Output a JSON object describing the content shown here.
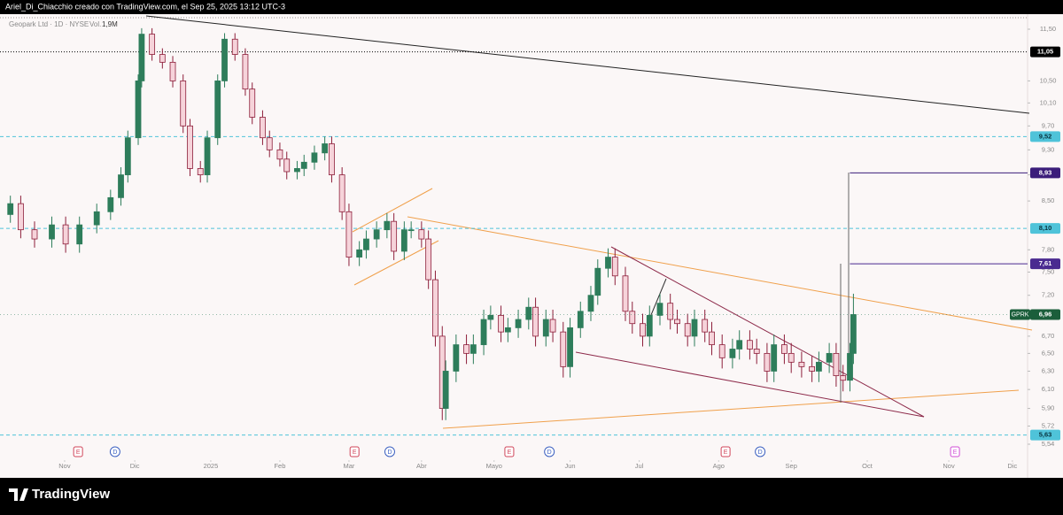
{
  "header": "Ariel_Di_Chiacchio creado con TradingView.com, el Sep 25, 2025 13:12 UTC-3",
  "footer": "TradingView",
  "chart_data": {
    "type": "candlestick",
    "title": "Geopark Ltd · 1D · NYSE",
    "volume_label": "Vol.",
    "volume": "1,9M",
    "symbol": "GPRK",
    "last_label": "6,96",
    "last": 6.96,
    "log": true,
    "grid": false,
    "up_color": "#2e7d5b",
    "down_color": "#8d1e3a",
    "x": [
      3,
      6,
      10,
      15,
      19,
      23,
      28,
      32,
      35,
      37,
      40,
      41,
      44,
      47,
      50,
      53,
      55,
      58,
      60,
      63,
      65,
      68,
      71,
      73,
      76,
      78,
      81,
      83,
      86,
      88,
      91,
      94,
      96,
      99,
      101,
      104,
      106,
      109,
      112,
      114,
      117,
      119,
      122,
      124,
      126,
      128,
      129,
      132,
      135,
      137,
      140,
      142,
      145,
      147,
      150,
      153,
      155,
      158,
      160,
      163,
      165,
      168,
      171,
      173,
      176,
      178,
      181,
      183,
      186,
      188,
      191,
      194,
      196,
      199,
      201,
      204,
      206,
      209,
      212,
      214,
      217,
      219,
      222,
      224,
      227,
      229,
      232,
      235,
      237,
      240,
      242,
      244,
      246,
      247
    ],
    "open": [
      8.3,
      8.46,
      8.08,
      7.95,
      8.15,
      7.88,
      8.15,
      8.34,
      8.55,
      8.9,
      9.5,
      10.5,
      11.4,
      11.0,
      10.85,
      10.5,
      9.7,
      9.0,
      8.9,
      9.5,
      10.5,
      11.3,
      11.0,
      10.35,
      9.85,
      9.5,
      9.3,
      9.15,
      8.95,
      9.0,
      9.1,
      9.25,
      9.4,
      8.9,
      8.34,
      7.7,
      7.8,
      7.95,
      8.08,
      8.2,
      7.78,
      8.08,
      8.08,
      7.95,
      7.4,
      6.7,
      5.9,
      6.3,
      6.6,
      6.5,
      6.6,
      6.9,
      6.95,
      6.75,
      6.8,
      6.9,
      7.05,
      6.7,
      6.9,
      6.75,
      6.35,
      6.8,
      7.0,
      7.2,
      7.55,
      7.7,
      7.45,
      7.0,
      6.85,
      6.7,
      6.95,
      7.1,
      6.9,
      6.85,
      6.7,
      6.9,
      6.75,
      6.6,
      6.45,
      6.55,
      6.65,
      6.55,
      6.5,
      6.3,
      6.6,
      6.5,
      6.4,
      6.35,
      6.3,
      6.4,
      6.5,
      6.25,
      6.2,
      6.5
    ],
    "high": [
      8.58,
      8.58,
      8.2,
      8.27,
      8.27,
      8.27,
      8.46,
      8.67,
      9.02,
      9.62,
      10.62,
      11.52,
      11.52,
      11.12,
      10.97,
      10.62,
      9.82,
      9.12,
      9.62,
      10.62,
      11.42,
      11.42,
      11.12,
      10.47,
      9.97,
      9.62,
      9.42,
      9.27,
      9.12,
      9.22,
      9.37,
      9.52,
      9.52,
      9.02,
      8.46,
      7.92,
      8.07,
      8.2,
      8.32,
      8.32,
      8.2,
      8.2,
      8.2,
      8.07,
      7.52,
      6.82,
      6.42,
      6.72,
      6.72,
      6.72,
      7.02,
      7.07,
      7.07,
      6.92,
      7.02,
      7.17,
      7.17,
      7.02,
      7.02,
      6.87,
      6.92,
      7.12,
      7.32,
      7.67,
      7.82,
      7.82,
      7.57,
      7.12,
      6.97,
      7.07,
      7.22,
      7.22,
      7.02,
      6.97,
      7.02,
      7.02,
      6.87,
      6.72,
      6.67,
      6.77,
      6.77,
      6.67,
      6.62,
      6.72,
      6.72,
      6.62,
      6.52,
      6.47,
      6.52,
      6.62,
      6.62,
      6.37,
      6.62,
      7.22
    ],
    "low": [
      8.18,
      7.96,
      7.83,
      7.83,
      7.76,
      7.76,
      8.03,
      8.22,
      8.43,
      8.78,
      9.38,
      10.38,
      10.88,
      10.73,
      10.38,
      9.58,
      8.88,
      8.78,
      8.78,
      9.38,
      10.38,
      10.88,
      10.23,
      9.73,
      9.38,
      9.18,
      9.03,
      8.83,
      8.83,
      8.88,
      8.98,
      9.13,
      8.78,
      8.22,
      7.58,
      7.58,
      7.68,
      7.83,
      7.96,
      7.66,
      7.66,
      7.96,
      7.83,
      7.28,
      6.58,
      5.78,
      5.78,
      6.18,
      6.38,
      6.38,
      6.48,
      6.78,
      6.63,
      6.63,
      6.68,
      6.78,
      6.58,
      6.58,
      6.63,
      6.23,
      6.23,
      6.68,
      6.88,
      7.08,
      7.43,
      7.33,
      6.88,
      6.73,
      6.58,
      6.58,
      6.83,
      6.78,
      6.73,
      6.58,
      6.58,
      6.63,
      6.48,
      6.33,
      6.33,
      6.43,
      6.43,
      6.38,
      6.18,
      6.18,
      6.38,
      6.28,
      6.23,
      6.18,
      6.18,
      6.28,
      6.13,
      6.08,
      6.08,
      6.38
    ],
    "close": [
      8.46,
      8.08,
      7.95,
      8.15,
      7.88,
      8.15,
      8.34,
      8.55,
      8.9,
      9.5,
      10.5,
      11.4,
      11.0,
      10.85,
      10.5,
      9.7,
      9.0,
      8.9,
      9.5,
      10.5,
      11.3,
      11.0,
      10.35,
      9.85,
      9.5,
      9.3,
      9.15,
      8.95,
      9.0,
      9.1,
      9.25,
      9.4,
      8.9,
      8.34,
      7.7,
      7.8,
      7.95,
      8.08,
      8.2,
      7.78,
      8.08,
      8.08,
      7.95,
      7.4,
      6.7,
      5.9,
      6.3,
      6.6,
      6.5,
      6.6,
      6.9,
      6.95,
      6.75,
      6.8,
      6.9,
      7.05,
      6.7,
      6.9,
      6.75,
      6.35,
      6.8,
      7.0,
      7.2,
      7.55,
      7.7,
      7.45,
      7.0,
      6.85,
      6.7,
      6.95,
      7.1,
      6.9,
      6.85,
      6.7,
      6.9,
      6.75,
      6.6,
      6.45,
      6.55,
      6.65,
      6.55,
      6.5,
      6.3,
      6.6,
      6.5,
      6.4,
      6.35,
      6.3,
      6.4,
      6.5,
      6.25,
      6.2,
      6.5,
      6.96
    ],
    "xlim": [
      0,
      297.4
    ],
    "xticks": [
      {
        "value": 18.7,
        "label": "Nov"
      },
      {
        "value": 39,
        "label": "Dic"
      },
      {
        "value": 61,
        "label": "2025"
      },
      {
        "value": 81,
        "label": "Feb"
      },
      {
        "value": 101,
        "label": "Mar"
      },
      {
        "value": 122,
        "label": "Abr"
      },
      {
        "value": 143,
        "label": "Mayo"
      },
      {
        "value": 165,
        "label": "Jun"
      },
      {
        "value": 185,
        "label": "Jul"
      },
      {
        "value": 208,
        "label": "Ago"
      },
      {
        "value": 229,
        "label": "Sep"
      },
      {
        "value": 251,
        "label": "Oct"
      },
      {
        "value": 274.6,
        "label": "Nov"
      },
      {
        "value": 293,
        "label": "Dic"
      }
    ],
    "ylim": [
      5.54,
      11.5
    ],
    "yticks": [
      {
        "value": 11.5,
        "label": "11,50"
      },
      {
        "value": 10.5,
        "label": "10,50"
      },
      {
        "value": 10.1,
        "label": "10,10"
      },
      {
        "value": 9.7,
        "label": "9,70"
      },
      {
        "value": 9.3,
        "label": "9,30"
      },
      {
        "value": 8.9,
        "label": "8,90"
      },
      {
        "value": 8.5,
        "label": "8,50"
      },
      {
        "value": 7.8,
        "label": "7,80"
      },
      {
        "value": 7.5,
        "label": "7,50"
      },
      {
        "value": 7.2,
        "label": "7,20"
      },
      {
        "value": 6.7,
        "label": "6,70"
      },
      {
        "value": 6.5,
        "label": "6,50"
      },
      {
        "value": 6.3,
        "label": "6,30"
      },
      {
        "value": 6.1,
        "label": "6,10"
      },
      {
        "value": 5.9,
        "label": "5,90"
      },
      {
        "value": 5.72,
        "label": "5,72"
      },
      {
        "value": 5.54,
        "label": "5,54"
      }
    ],
    "price_lines": [
      {
        "value": 11.05,
        "label": "11,05",
        "color": "#000000",
        "style": "dotted"
      },
      {
        "value": 9.52,
        "label": "9,52",
        "color": "#4fc3d9",
        "style": "dashed"
      },
      {
        "value": 8.93,
        "label": "8,93",
        "color": "#3b1d7a",
        "style": "ray"
      },
      {
        "value": 8.1,
        "label": "8,10",
        "color": "#4fc3d9",
        "style": "dashed"
      },
      {
        "value": 7.61,
        "label": "7,61",
        "color": "#4a2a90",
        "style": "ray"
      },
      {
        "value": 5.63,
        "label": "5,63",
        "color": "#4fc3d9",
        "style": "dashed"
      }
    ],
    "events": [
      {
        "x": 22.6,
        "label": "E"
      },
      {
        "x": 33.3,
        "label": "D"
      },
      {
        "x": 102.6,
        "label": "E"
      },
      {
        "x": 112.8,
        "label": "D"
      },
      {
        "x": 147.4,
        "label": "E"
      },
      {
        "x": 159,
        "label": "D"
      },
      {
        "x": 210,
        "label": "E"
      },
      {
        "x": 220,
        "label": "D"
      },
      {
        "x": 276.4,
        "label": "E"
      }
    ]
  }
}
